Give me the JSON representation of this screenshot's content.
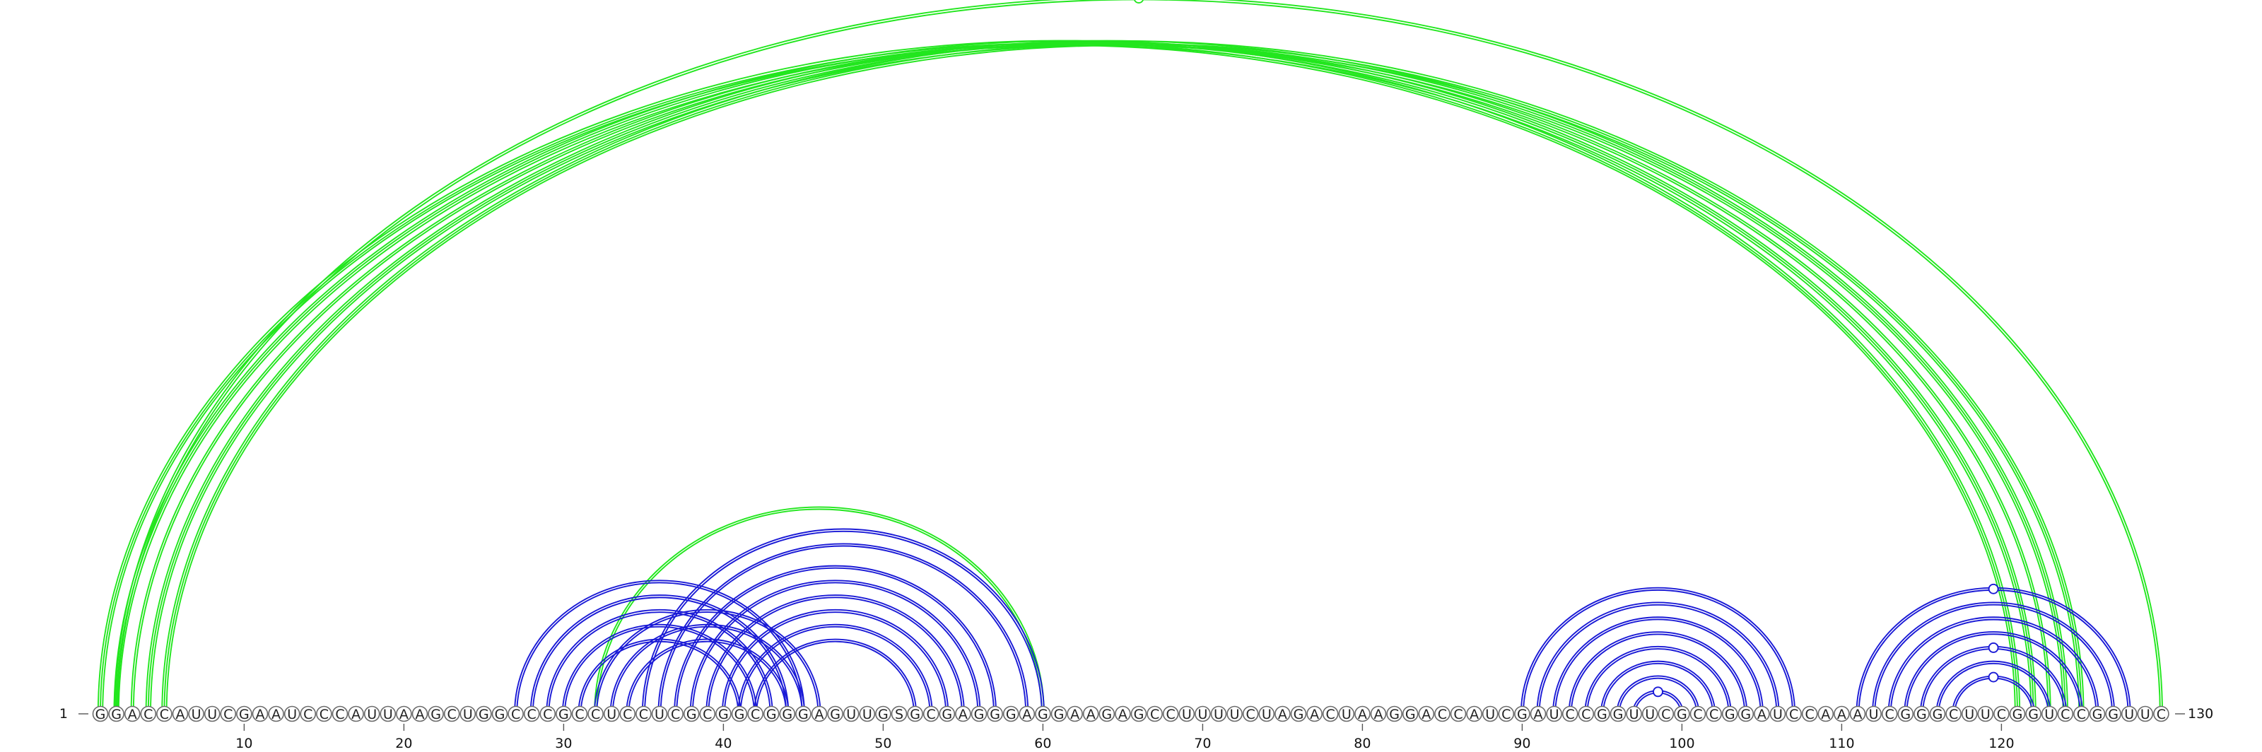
{
  "diagram": {
    "type": "rna-arc-diagram",
    "sequence": "GGACCAUUCGAAUCCCAUUAAGCUGGCCCGCCUCCUCGCGGCGGGAGUUGSGCGAGGGAGGAAGAGCCUUUUCUAGACUAAGGACCAUCGAUCCGGUUCGCCGGAUCCAAAUCGGGCUUCGGUCCGGUUC",
    "start_label": "1",
    "end_label": "130",
    "position_ticks": [
      10,
      20,
      30,
      40,
      50,
      60,
      70,
      80,
      90,
      100,
      110,
      120
    ],
    "colors": {
      "green": "#22e61e",
      "blue": "#1a1ad6"
    },
    "arcs": [
      {
        "i": 1,
        "j": 121,
        "color": "green",
        "lines": 3
      },
      {
        "i": 2,
        "j": 122,
        "color": "green",
        "lines": 3
      },
      {
        "i": 3,
        "j": 123,
        "color": "green",
        "lines": 2
      },
      {
        "i": 4,
        "j": 124,
        "color": "green",
        "lines": 3
      },
      {
        "i": 5,
        "j": 125,
        "color": "green",
        "lines": 3
      },
      {
        "i": 2,
        "j": 130,
        "color": "green",
        "lines": 2,
        "marker": true
      },
      {
        "i": 32,
        "j": 60,
        "color": "green",
        "lines": 2
      },
      {
        "i": 27,
        "j": 45,
        "color": "blue",
        "lines": 2
      },
      {
        "i": 28,
        "j": 44,
        "color": "blue",
        "lines": 2
      },
      {
        "i": 29,
        "j": 43,
        "color": "blue",
        "lines": 2
      },
      {
        "i": 30,
        "j": 42,
        "color": "blue",
        "lines": 2
      },
      {
        "i": 31,
        "j": 41,
        "color": "blue",
        "lines": 2
      },
      {
        "i": 32,
        "j": 46,
        "color": "blue",
        "lines": 2
      },
      {
        "i": 33,
        "j": 45,
        "color": "blue",
        "lines": 2
      },
      {
        "i": 34,
        "j": 44,
        "color": "blue",
        "lines": 2
      },
      {
        "i": 35,
        "j": 60,
        "color": "blue",
        "lines": 2
      },
      {
        "i": 36,
        "j": 59,
        "color": "blue",
        "lines": 2
      },
      {
        "i": 37,
        "j": 57,
        "color": "blue",
        "lines": 2
      },
      {
        "i": 38,
        "j": 56,
        "color": "blue",
        "lines": 2
      },
      {
        "i": 39,
        "j": 55,
        "color": "blue",
        "lines": 2
      },
      {
        "i": 40,
        "j": 54,
        "color": "blue",
        "lines": 2
      },
      {
        "i": 41,
        "j": 53,
        "color": "blue",
        "lines": 2
      },
      {
        "i": 42,
        "j": 52,
        "color": "blue",
        "lines": 2
      },
      {
        "i": 90,
        "j": 107,
        "color": "blue",
        "lines": 2
      },
      {
        "i": 91,
        "j": 106,
        "color": "blue",
        "lines": 2
      },
      {
        "i": 92,
        "j": 105,
        "color": "blue",
        "lines": 2
      },
      {
        "i": 93,
        "j": 104,
        "color": "blue",
        "lines": 2
      },
      {
        "i": 94,
        "j": 103,
        "color": "blue",
        "lines": 2
      },
      {
        "i": 95,
        "j": 102,
        "color": "blue",
        "lines": 2
      },
      {
        "i": 96,
        "j": 101,
        "color": "blue",
        "lines": 2
      },
      {
        "i": 97,
        "j": 100,
        "color": "blue",
        "lines": 2,
        "marker": true
      },
      {
        "i": 111,
        "j": 128,
        "color": "blue",
        "lines": 2,
        "marker": true
      },
      {
        "i": 112,
        "j": 127,
        "color": "blue",
        "lines": 2
      },
      {
        "i": 113,
        "j": 126,
        "color": "blue",
        "lines": 2
      },
      {
        "i": 114,
        "j": 125,
        "color": "blue",
        "lines": 2
      },
      {
        "i": 115,
        "j": 124,
        "color": "blue",
        "lines": 2,
        "marker": true
      },
      {
        "i": 116,
        "j": 123,
        "color": "blue",
        "lines": 2
      },
      {
        "i": 117,
        "j": 122,
        "color": "blue",
        "lines": 2,
        "marker": true
      }
    ]
  }
}
